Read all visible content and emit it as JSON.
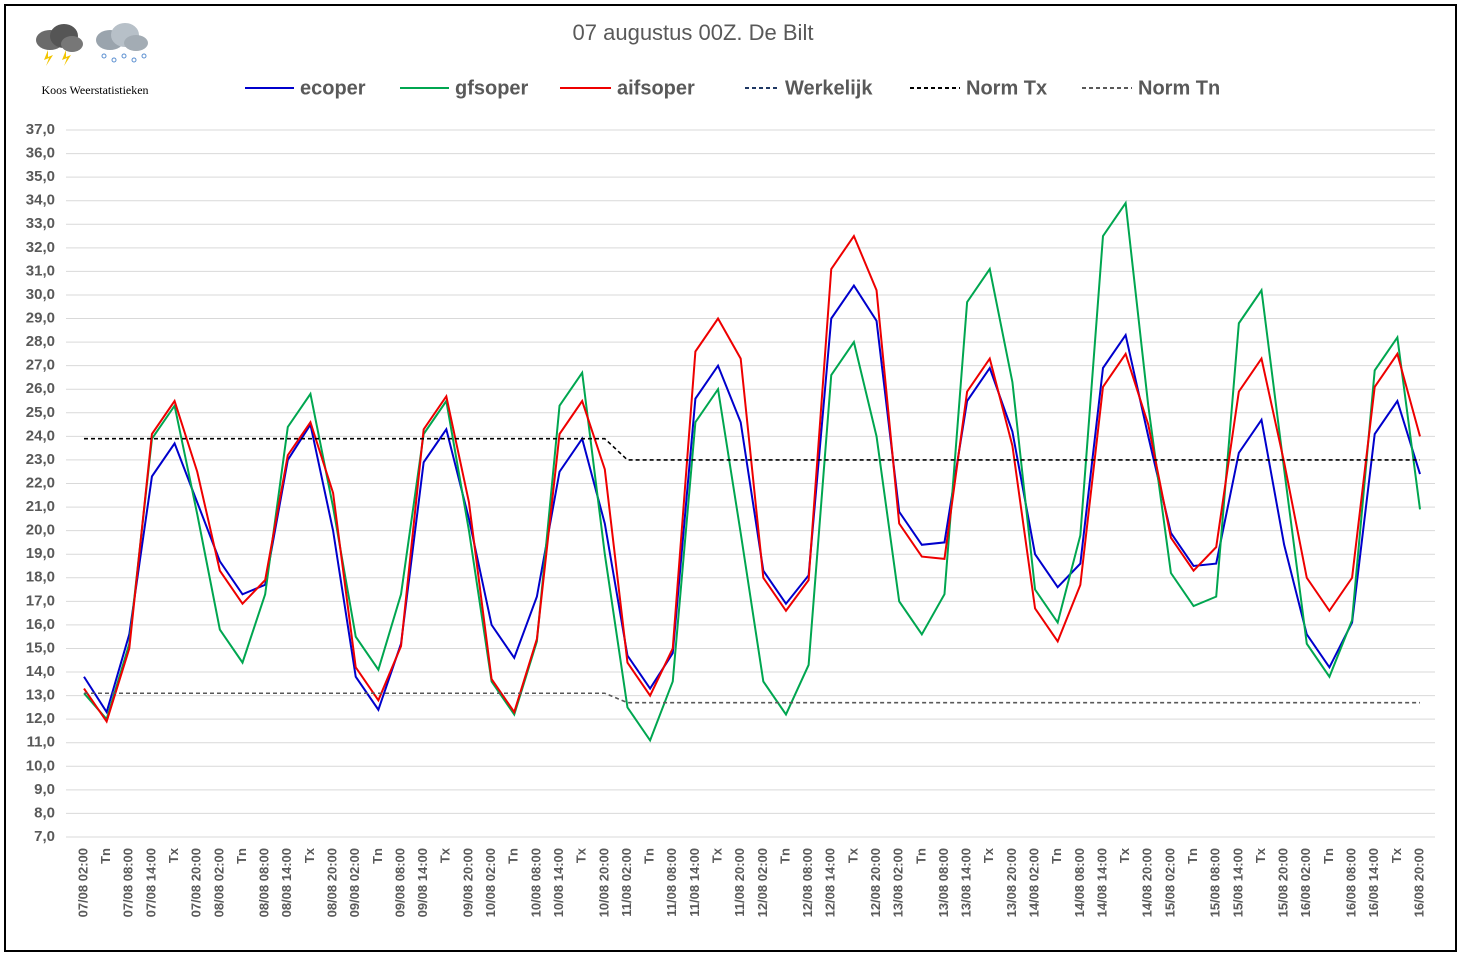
{
  "chart_data": {
    "type": "line",
    "title": "07 augustus 00Z. De Bilt",
    "subtitle": "Koos Weerstatistieken",
    "categories": [
      "07/08 02:00",
      "Tn",
      "07/08 08:00",
      "07/08 14:00",
      "Tx",
      "07/08 20:00",
      "08/08 02:00",
      "Tn",
      "08/08 08:00",
      "08/08 14:00",
      "Tx",
      "08/08 20:00",
      "09/08 02:00",
      "Tn",
      "09/08 08:00",
      "09/08 14:00",
      "Tx",
      "09/08 20:00",
      "10/08 02:00",
      "Tn",
      "10/08 08:00",
      "10/08 14:00",
      "Tx",
      "10/08 20:00",
      "11/08 02:00",
      "Tn",
      "11/08 08:00",
      "11/08 14:00",
      "Tx",
      "11/08 20:00",
      "12/08 02:00",
      "Tn",
      "12/08 08:00",
      "12/08 14:00",
      "Tx",
      "12/08 20:00",
      "13/08 02:00",
      "Tn",
      "13/08 08:00",
      "13/08 14:00",
      "Tx",
      "13/08 20:00",
      "14/08 02:00",
      "Tn",
      "14/08 08:00",
      "14/08 14:00",
      "Tx",
      "14/08 20:00",
      "15/08 02:00",
      "Tn",
      "15/08 08:00",
      "15/08 14:00",
      "Tx",
      "15/08 20:00",
      "16/08 02:00",
      "Tn",
      "16/08 08:00",
      "16/08 14:00",
      "Tx",
      "16/08 20:00"
    ],
    "series": [
      {
        "name": "ecoper",
        "color": "#0000cc",
        "dashed": false,
        "values": [
          13.8,
          12.3,
          15.6,
          22.3,
          23.7,
          21.2,
          18.7,
          17.3,
          17.7,
          23.0,
          24.5,
          20.0,
          13.8,
          12.4,
          15.2,
          22.9,
          24.3,
          20.5,
          16.0,
          14.6,
          17.2,
          22.5,
          23.9,
          20.3,
          14.7,
          13.3,
          14.8,
          25.6,
          27.0,
          24.6,
          18.3,
          16.9,
          18.1,
          29.0,
          30.4,
          28.9,
          20.8,
          19.4,
          19.5,
          25.5,
          26.9,
          24.2,
          19.0,
          17.6,
          18.6,
          26.9,
          28.3,
          24.0,
          19.9,
          18.5,
          18.6,
          23.3,
          24.7,
          19.4,
          15.6,
          14.2,
          16.1,
          24.1,
          25.5,
          22.4
        ]
      },
      {
        "name": "gfsoper",
        "color": "#00a650",
        "dashed": false,
        "values": [
          13.1,
          12.0,
          15.2,
          23.9,
          25.3,
          20.7,
          15.8,
          14.4,
          17.3,
          24.4,
          25.8,
          21.0,
          15.5,
          14.1,
          17.3,
          24.1,
          25.5,
          20.0,
          13.6,
          12.2,
          15.3,
          25.3,
          26.7,
          19.0,
          12.5,
          11.1,
          13.6,
          24.6,
          26.0,
          19.9,
          13.6,
          12.2,
          14.3,
          26.6,
          28.0,
          24.0,
          17.0,
          15.6,
          17.3,
          29.7,
          31.1,
          26.3,
          17.5,
          16.1,
          19.8,
          32.5,
          33.9,
          25.3,
          18.2,
          16.8,
          17.2,
          28.8,
          30.2,
          22.6,
          15.2,
          13.8,
          16.2,
          26.8,
          28.2,
          20.9
        ]
      },
      {
        "name": "aifsoper",
        "color": "#ee0000",
        "dashed": false,
        "values": [
          13.3,
          11.9,
          15.0,
          24.1,
          25.5,
          22.5,
          18.3,
          16.9,
          17.9,
          23.2,
          24.6,
          21.6,
          14.2,
          12.8,
          15.1,
          24.3,
          25.7,
          21.2,
          13.7,
          12.3,
          15.4,
          24.1,
          25.5,
          22.6,
          14.4,
          13.0,
          15.0,
          27.6,
          29.0,
          27.3,
          18.0,
          16.6,
          17.9,
          31.1,
          32.5,
          30.2,
          20.3,
          18.9,
          18.8,
          25.9,
          27.3,
          23.6,
          16.7,
          15.3,
          17.7,
          26.1,
          27.5,
          24.5,
          19.7,
          18.3,
          19.3,
          25.9,
          27.3,
          22.9,
          18.0,
          16.6,
          18.0,
          26.1,
          27.5,
          24.0
        ]
      },
      {
        "name": "Werkelijk",
        "color": "#1f3864",
        "dashed": true,
        "values": [
          null,
          null,
          null,
          null,
          null,
          null,
          null,
          null,
          null,
          null,
          null,
          null,
          null,
          null,
          null,
          null,
          null,
          null,
          null,
          null,
          null,
          null,
          null,
          null,
          null,
          null,
          null,
          null,
          null,
          null,
          null,
          null,
          null,
          null,
          null,
          null,
          null,
          null,
          null,
          null,
          null,
          null,
          null,
          null,
          null,
          null,
          null,
          null,
          null,
          null,
          null,
          null,
          null,
          null,
          null,
          null,
          null,
          null,
          null,
          null
        ]
      },
      {
        "name": "Norm Tx",
        "color": "#000000",
        "dashed": true,
        "values": [
          23.9,
          23.9,
          23.9,
          23.9,
          23.9,
          23.9,
          23.9,
          23.9,
          23.9,
          23.9,
          23.9,
          23.9,
          23.9,
          23.9,
          23.9,
          23.9,
          23.9,
          23.9,
          23.9,
          23.9,
          23.9,
          23.9,
          23.9,
          23.9,
          23.0,
          23.0,
          23.0,
          23.0,
          23.0,
          23.0,
          23.0,
          23.0,
          23.0,
          23.0,
          23.0,
          23.0,
          23.0,
          23.0,
          23.0,
          23.0,
          23.0,
          23.0,
          23.0,
          23.0,
          23.0,
          23.0,
          23.0,
          23.0,
          23.0,
          23.0,
          23.0,
          23.0,
          23.0,
          23.0,
          23.0,
          23.0,
          23.0,
          23.0,
          23.0,
          23.0
        ]
      },
      {
        "name": "Norm Tn",
        "color": "#595959",
        "dashed": true,
        "values": [
          13.1,
          13.1,
          13.1,
          13.1,
          13.1,
          13.1,
          13.1,
          13.1,
          13.1,
          13.1,
          13.1,
          13.1,
          13.1,
          13.1,
          13.1,
          13.1,
          13.1,
          13.1,
          13.1,
          13.1,
          13.1,
          13.1,
          13.1,
          13.1,
          12.7,
          12.7,
          12.7,
          12.7,
          12.7,
          12.7,
          12.7,
          12.7,
          12.7,
          12.7,
          12.7,
          12.7,
          12.7,
          12.7,
          12.7,
          12.7,
          12.7,
          12.7,
          12.7,
          12.7,
          12.7,
          12.7,
          12.7,
          12.7,
          12.7,
          12.7,
          12.7,
          12.7,
          12.7,
          12.7,
          12.7,
          12.7,
          12.7,
          12.7,
          12.7,
          12.7
        ]
      }
    ],
    "ylim": [
      7,
      37
    ],
    "yticks": [
      {
        "value": 7,
        "label": "7,0"
      },
      {
        "value": 8,
        "label": "8,0"
      },
      {
        "value": 9,
        "label": "9,0"
      },
      {
        "value": 10,
        "label": "10,0"
      },
      {
        "value": 11,
        "label": "11,0"
      },
      {
        "value": 12,
        "label": "12,0"
      },
      {
        "value": 13,
        "label": "13,0"
      },
      {
        "value": 14,
        "label": "14,0"
      },
      {
        "value": 15,
        "label": "15,0"
      },
      {
        "value": 16,
        "label": "16,0"
      },
      {
        "value": 17,
        "label": "17,0"
      },
      {
        "value": 18,
        "label": "18,0"
      },
      {
        "value": 19,
        "label": "19,0"
      },
      {
        "value": 20,
        "label": "20,0"
      },
      {
        "value": 21,
        "label": "21,0"
      },
      {
        "value": 22,
        "label": "22,0"
      },
      {
        "value": 23,
        "label": "23,0"
      },
      {
        "value": 24,
        "label": "24,0"
      },
      {
        "value": 25,
        "label": "25,0"
      },
      {
        "value": 26,
        "label": "26,0"
      },
      {
        "value": 27,
        "label": "27,0"
      },
      {
        "value": 28,
        "label": "28,0"
      },
      {
        "value": 29,
        "label": "29,0"
      },
      {
        "value": 30,
        "label": "30,0"
      },
      {
        "value": 31,
        "label": "31,0"
      },
      {
        "value": 32,
        "label": "32,0"
      },
      {
        "value": 33,
        "label": "33,0"
      },
      {
        "value": 34,
        "label": "34,0"
      },
      {
        "value": 35,
        "label": "35,0"
      },
      {
        "value": 36,
        "label": "36,0"
      },
      {
        "value": 37,
        "label": "37,0"
      }
    ],
    "grid": true,
    "legend": "top"
  }
}
